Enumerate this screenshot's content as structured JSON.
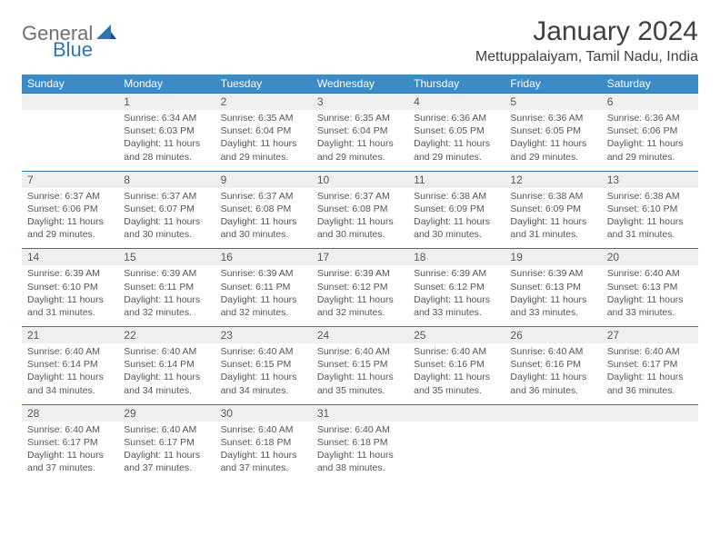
{
  "logo": {
    "general": "General",
    "blue": "Blue"
  },
  "title": "January 2024",
  "location": "Mettuppalaiyam, Tamil Nadu, India",
  "colors": {
    "header_bg": "#3b8bc7",
    "header_text": "#ffffff",
    "daynum_bg": "#efefef",
    "row_border": "#2e75b6",
    "text": "#555555",
    "logo_gray": "#6f6f6f",
    "logo_blue": "#2e75b6"
  },
  "day_labels": [
    "Sunday",
    "Monday",
    "Tuesday",
    "Wednesday",
    "Thursday",
    "Friday",
    "Saturday"
  ],
  "weeks": [
    {
      "nums": [
        "",
        "1",
        "2",
        "3",
        "4",
        "5",
        "6"
      ],
      "cells": [
        null,
        {
          "sunrise": "Sunrise: 6:34 AM",
          "sunset": "Sunset: 6:03 PM",
          "day1": "Daylight: 11 hours",
          "day2": "and 28 minutes."
        },
        {
          "sunrise": "Sunrise: 6:35 AM",
          "sunset": "Sunset: 6:04 PM",
          "day1": "Daylight: 11 hours",
          "day2": "and 29 minutes."
        },
        {
          "sunrise": "Sunrise: 6:35 AM",
          "sunset": "Sunset: 6:04 PM",
          "day1": "Daylight: 11 hours",
          "day2": "and 29 minutes."
        },
        {
          "sunrise": "Sunrise: 6:36 AM",
          "sunset": "Sunset: 6:05 PM",
          "day1": "Daylight: 11 hours",
          "day2": "and 29 minutes."
        },
        {
          "sunrise": "Sunrise: 6:36 AM",
          "sunset": "Sunset: 6:05 PM",
          "day1": "Daylight: 11 hours",
          "day2": "and 29 minutes."
        },
        {
          "sunrise": "Sunrise: 6:36 AM",
          "sunset": "Sunset: 6:06 PM",
          "day1": "Daylight: 11 hours",
          "day2": "and 29 minutes."
        }
      ]
    },
    {
      "nums": [
        "7",
        "8",
        "9",
        "10",
        "11",
        "12",
        "13"
      ],
      "cells": [
        {
          "sunrise": "Sunrise: 6:37 AM",
          "sunset": "Sunset: 6:06 PM",
          "day1": "Daylight: 11 hours",
          "day2": "and 29 minutes."
        },
        {
          "sunrise": "Sunrise: 6:37 AM",
          "sunset": "Sunset: 6:07 PM",
          "day1": "Daylight: 11 hours",
          "day2": "and 30 minutes."
        },
        {
          "sunrise": "Sunrise: 6:37 AM",
          "sunset": "Sunset: 6:08 PM",
          "day1": "Daylight: 11 hours",
          "day2": "and 30 minutes."
        },
        {
          "sunrise": "Sunrise: 6:37 AM",
          "sunset": "Sunset: 6:08 PM",
          "day1": "Daylight: 11 hours",
          "day2": "and 30 minutes."
        },
        {
          "sunrise": "Sunrise: 6:38 AM",
          "sunset": "Sunset: 6:09 PM",
          "day1": "Daylight: 11 hours",
          "day2": "and 30 minutes."
        },
        {
          "sunrise": "Sunrise: 6:38 AM",
          "sunset": "Sunset: 6:09 PM",
          "day1": "Daylight: 11 hours",
          "day2": "and 31 minutes."
        },
        {
          "sunrise": "Sunrise: 6:38 AM",
          "sunset": "Sunset: 6:10 PM",
          "day1": "Daylight: 11 hours",
          "day2": "and 31 minutes."
        }
      ]
    },
    {
      "nums": [
        "14",
        "15",
        "16",
        "17",
        "18",
        "19",
        "20"
      ],
      "cells": [
        {
          "sunrise": "Sunrise: 6:39 AM",
          "sunset": "Sunset: 6:10 PM",
          "day1": "Daylight: 11 hours",
          "day2": "and 31 minutes."
        },
        {
          "sunrise": "Sunrise: 6:39 AM",
          "sunset": "Sunset: 6:11 PM",
          "day1": "Daylight: 11 hours",
          "day2": "and 32 minutes."
        },
        {
          "sunrise": "Sunrise: 6:39 AM",
          "sunset": "Sunset: 6:11 PM",
          "day1": "Daylight: 11 hours",
          "day2": "and 32 minutes."
        },
        {
          "sunrise": "Sunrise: 6:39 AM",
          "sunset": "Sunset: 6:12 PM",
          "day1": "Daylight: 11 hours",
          "day2": "and 32 minutes."
        },
        {
          "sunrise": "Sunrise: 6:39 AM",
          "sunset": "Sunset: 6:12 PM",
          "day1": "Daylight: 11 hours",
          "day2": "and 33 minutes."
        },
        {
          "sunrise": "Sunrise: 6:39 AM",
          "sunset": "Sunset: 6:13 PM",
          "day1": "Daylight: 11 hours",
          "day2": "and 33 minutes."
        },
        {
          "sunrise": "Sunrise: 6:40 AM",
          "sunset": "Sunset: 6:13 PM",
          "day1": "Daylight: 11 hours",
          "day2": "and 33 minutes."
        }
      ]
    },
    {
      "nums": [
        "21",
        "22",
        "23",
        "24",
        "25",
        "26",
        "27"
      ],
      "cells": [
        {
          "sunrise": "Sunrise: 6:40 AM",
          "sunset": "Sunset: 6:14 PM",
          "day1": "Daylight: 11 hours",
          "day2": "and 34 minutes."
        },
        {
          "sunrise": "Sunrise: 6:40 AM",
          "sunset": "Sunset: 6:14 PM",
          "day1": "Daylight: 11 hours",
          "day2": "and 34 minutes."
        },
        {
          "sunrise": "Sunrise: 6:40 AM",
          "sunset": "Sunset: 6:15 PM",
          "day1": "Daylight: 11 hours",
          "day2": "and 34 minutes."
        },
        {
          "sunrise": "Sunrise: 6:40 AM",
          "sunset": "Sunset: 6:15 PM",
          "day1": "Daylight: 11 hours",
          "day2": "and 35 minutes."
        },
        {
          "sunrise": "Sunrise: 6:40 AM",
          "sunset": "Sunset: 6:16 PM",
          "day1": "Daylight: 11 hours",
          "day2": "and 35 minutes."
        },
        {
          "sunrise": "Sunrise: 6:40 AM",
          "sunset": "Sunset: 6:16 PM",
          "day1": "Daylight: 11 hours",
          "day2": "and 36 minutes."
        },
        {
          "sunrise": "Sunrise: 6:40 AM",
          "sunset": "Sunset: 6:17 PM",
          "day1": "Daylight: 11 hours",
          "day2": "and 36 minutes."
        }
      ]
    },
    {
      "nums": [
        "28",
        "29",
        "30",
        "31",
        "",
        "",
        ""
      ],
      "cells": [
        {
          "sunrise": "Sunrise: 6:40 AM",
          "sunset": "Sunset: 6:17 PM",
          "day1": "Daylight: 11 hours",
          "day2": "and 37 minutes."
        },
        {
          "sunrise": "Sunrise: 6:40 AM",
          "sunset": "Sunset: 6:17 PM",
          "day1": "Daylight: 11 hours",
          "day2": "and 37 minutes."
        },
        {
          "sunrise": "Sunrise: 6:40 AM",
          "sunset": "Sunset: 6:18 PM",
          "day1": "Daylight: 11 hours",
          "day2": "and 37 minutes."
        },
        {
          "sunrise": "Sunrise: 6:40 AM",
          "sunset": "Sunset: 6:18 PM",
          "day1": "Daylight: 11 hours",
          "day2": "and 38 minutes."
        },
        null,
        null,
        null
      ]
    }
  ]
}
